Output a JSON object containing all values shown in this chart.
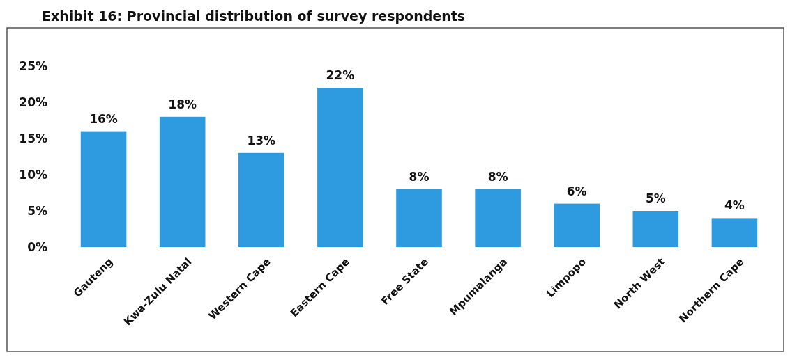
{
  "chart_data": {
    "type": "bar",
    "title": "Exhibit 16: Provincial distribution of survey respondents",
    "categories": [
      "Gauteng",
      "Kwa-Zulu Natal",
      "Western Cape",
      "Eastern Cape",
      "Free State",
      "Mpumalanga",
      "Limpopo",
      "North West",
      "Northern Cape"
    ],
    "values": [
      16,
      18,
      13,
      22,
      8,
      8,
      6,
      5,
      4
    ],
    "value_labels": [
      "16%",
      "18%",
      "13%",
      "22%",
      "8%",
      "8%",
      "6%",
      "5%",
      "4%"
    ],
    "color": "#2e9be0",
    "ylim": [
      0,
      25
    ],
    "yticks": [
      {
        "value": 0,
        "label": "0%"
      },
      {
        "value": 5,
        "label": "5%"
      },
      {
        "value": 10,
        "label": "10%"
      },
      {
        "value": 15,
        "label": "15%"
      },
      {
        "value": 20,
        "label": "20%"
      },
      {
        "value": 25,
        "label": "25%"
      }
    ],
    "grid": false
  }
}
